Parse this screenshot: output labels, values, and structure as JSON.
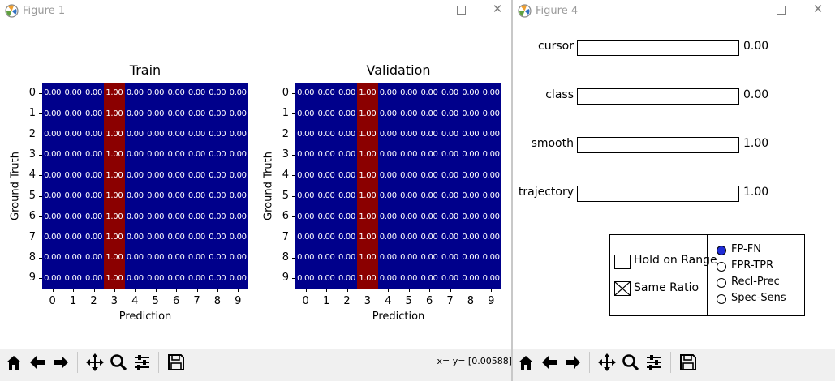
{
  "figure1": {
    "window_title": "Figure 1",
    "coord_readout": "x= y= [0.00588]",
    "heatmaps": [
      {
        "title": "Train",
        "xlabel": "Prediction",
        "ylabel": "Ground Truth",
        "x_ticks": [
          "0",
          "1",
          "2",
          "3",
          "4",
          "5",
          "6",
          "7",
          "8",
          "9"
        ],
        "y_ticks": [
          "0",
          "1",
          "2",
          "3",
          "4",
          "5",
          "6",
          "7",
          "8",
          "9"
        ],
        "cell_zero": "0.00",
        "cell_one": "1.00",
        "hot_column": 3
      },
      {
        "title": "Validation",
        "xlabel": "Prediction",
        "ylabel": "Ground Truth",
        "x_ticks": [
          "0",
          "1",
          "2",
          "3",
          "4",
          "5",
          "6",
          "7",
          "8",
          "9"
        ],
        "y_ticks": [
          "0",
          "1",
          "2",
          "3",
          "4",
          "5",
          "6",
          "7",
          "8",
          "9"
        ],
        "cell_zero": "0.00",
        "cell_one": "1.00",
        "hot_column": 3
      }
    ]
  },
  "figure4": {
    "window_title": "Figure 4",
    "sliders": [
      {
        "label": "cursor",
        "value": "0.00"
      },
      {
        "label": "class",
        "value": "0.00"
      },
      {
        "label": "smooth",
        "value": "1.00"
      },
      {
        "label": "trajectory",
        "value": "1.00"
      }
    ],
    "checkboxes": [
      {
        "label": "Hold on Range",
        "checked": false
      },
      {
        "label": "Same Ratio",
        "checked": true
      }
    ],
    "radios": [
      {
        "label": "FP-FN",
        "selected": true
      },
      {
        "label": "FPR-TPR",
        "selected": false
      },
      {
        "label": "Recl-Prec",
        "selected": false
      },
      {
        "label": "Spec-Sens",
        "selected": false
      }
    ]
  },
  "toolbar": {
    "icons": [
      "home-icon",
      "back-icon",
      "forward-icon",
      "pan-icon",
      "zoom-icon",
      "configure-subplots-icon",
      "save-icon"
    ]
  },
  "colors": {
    "cold": "#00008b",
    "hot": "#8b0000",
    "radio_selected": "#1f2bd6"
  },
  "chart_data": [
    {
      "type": "heatmap",
      "title": "Train",
      "xlabel": "Prediction",
      "ylabel": "Ground Truth",
      "x": [
        0,
        1,
        2,
        3,
        4,
        5,
        6,
        7,
        8,
        9
      ],
      "y": [
        0,
        1,
        2,
        3,
        4,
        5,
        6,
        7,
        8,
        9
      ],
      "values": [
        [
          0,
          0,
          0,
          1,
          0,
          0,
          0,
          0,
          0,
          0
        ],
        [
          0,
          0,
          0,
          1,
          0,
          0,
          0,
          0,
          0,
          0
        ],
        [
          0,
          0,
          0,
          1,
          0,
          0,
          0,
          0,
          0,
          0
        ],
        [
          0,
          0,
          0,
          1,
          0,
          0,
          0,
          0,
          0,
          0
        ],
        [
          0,
          0,
          0,
          1,
          0,
          0,
          0,
          0,
          0,
          0
        ],
        [
          0,
          0,
          0,
          1,
          0,
          0,
          0,
          0,
          0,
          0
        ],
        [
          0,
          0,
          0,
          1,
          0,
          0,
          0,
          0,
          0,
          0
        ],
        [
          0,
          0,
          0,
          1,
          0,
          0,
          0,
          0,
          0,
          0
        ],
        [
          0,
          0,
          0,
          1,
          0,
          0,
          0,
          0,
          0,
          0
        ],
        [
          0,
          0,
          0,
          1,
          0,
          0,
          0,
          0,
          0,
          0
        ]
      ]
    },
    {
      "type": "heatmap",
      "title": "Validation",
      "xlabel": "Prediction",
      "ylabel": "Ground Truth",
      "x": [
        0,
        1,
        2,
        3,
        4,
        5,
        6,
        7,
        8,
        9
      ],
      "y": [
        0,
        1,
        2,
        3,
        4,
        5,
        6,
        7,
        8,
        9
      ],
      "values": [
        [
          0,
          0,
          0,
          1,
          0,
          0,
          0,
          0,
          0,
          0
        ],
        [
          0,
          0,
          0,
          1,
          0,
          0,
          0,
          0,
          0,
          0
        ],
        [
          0,
          0,
          0,
          1,
          0,
          0,
          0,
          0,
          0,
          0
        ],
        [
          0,
          0,
          0,
          1,
          0,
          0,
          0,
          0,
          0,
          0
        ],
        [
          0,
          0,
          0,
          1,
          0,
          0,
          0,
          0,
          0,
          0
        ],
        [
          0,
          0,
          0,
          1,
          0,
          0,
          0,
          0,
          0,
          0
        ],
        [
          0,
          0,
          0,
          1,
          0,
          0,
          0,
          0,
          0,
          0
        ],
        [
          0,
          0,
          0,
          1,
          0,
          0,
          0,
          0,
          0,
          0
        ],
        [
          0,
          0,
          0,
          1,
          0,
          0,
          0,
          0,
          0,
          0
        ],
        [
          0,
          0,
          0,
          1,
          0,
          0,
          0,
          0,
          0,
          0
        ]
      ]
    }
  ]
}
